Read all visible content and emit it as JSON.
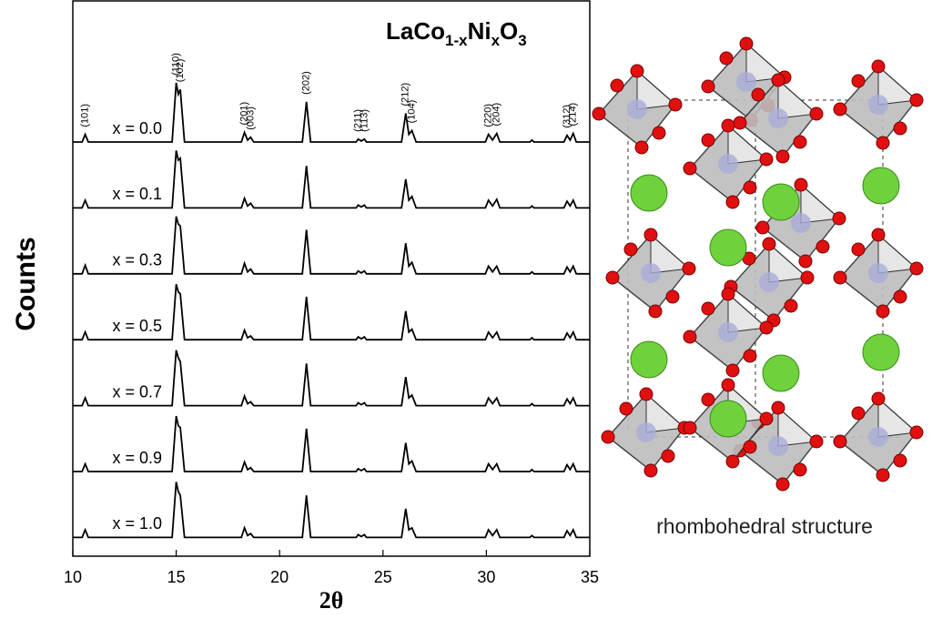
{
  "chart_data": {
    "type": "line",
    "title": [
      "LaCo",
      "1-x",
      "Ni",
      "x",
      "O",
      "3"
    ],
    "xlabel": "2θ",
    "ylabel": "Counts",
    "xlim": [
      10,
      35
    ],
    "xticks": [
      10,
      15,
      20,
      25,
      30,
      35
    ],
    "x": [
      10,
      10.45,
      10.6,
      10.75,
      14.8,
      15.0,
      15.1,
      15.2,
      15.4,
      18.15,
      18.3,
      18.45,
      18.6,
      18.75,
      21.1,
      21.3,
      21.5,
      23.7,
      23.8,
      23.95,
      24.1,
      24.2,
      25.9,
      26.1,
      26.25,
      26.4,
      26.6,
      29.95,
      30.1,
      30.3,
      30.5,
      30.65,
      32.1,
      32.2,
      32.3,
      33.75,
      33.9,
      34.05,
      34.2,
      34.35,
      35
    ],
    "series": [
      {
        "name": "x = 0.0",
        "color": "#000000",
        "values": [
          0,
          0,
          8,
          0,
          0,
          62,
          50,
          55,
          0,
          0,
          10,
          2,
          5,
          0,
          0,
          42,
          0,
          0,
          3,
          1,
          3,
          0,
          0,
          30,
          8,
          12,
          0,
          0,
          8,
          2,
          9,
          0,
          0,
          2,
          0,
          0,
          7,
          2,
          9,
          0,
          0
        ]
      },
      {
        "name": "x = 0.1",
        "color": "#000000",
        "values": [
          0,
          0,
          8,
          0,
          0,
          60,
          50,
          52,
          0,
          0,
          10,
          2,
          5,
          0,
          0,
          44,
          0,
          0,
          3,
          1,
          3,
          0,
          0,
          30,
          8,
          12,
          0,
          0,
          8,
          2,
          9,
          0,
          0,
          2,
          0,
          0,
          7,
          2,
          8,
          0,
          0
        ]
      },
      {
        "name": "x = 0.3",
        "color": "#000000",
        "values": [
          0,
          0,
          9,
          0,
          0,
          60,
          52,
          50,
          0,
          0,
          11,
          2,
          5,
          0,
          0,
          46,
          0,
          0,
          3,
          1,
          3,
          0,
          0,
          32,
          8,
          12,
          0,
          0,
          8,
          2,
          8,
          0,
          0,
          2,
          0,
          0,
          7,
          2,
          8,
          0,
          0
        ]
      },
      {
        "name": "x = 0.5",
        "color": "#000000",
        "values": [
          0,
          0,
          8,
          0,
          0,
          58,
          50,
          48,
          0,
          0,
          10,
          2,
          4,
          0,
          0,
          45,
          0,
          0,
          3,
          1,
          3,
          0,
          0,
          30,
          8,
          11,
          0,
          0,
          8,
          2,
          8,
          0,
          0,
          2,
          0,
          0,
          7,
          2,
          8,
          0,
          0
        ]
      },
      {
        "name": "x = 0.7",
        "color": "#000000",
        "values": [
          0,
          0,
          8,
          0,
          0,
          58,
          50,
          46,
          0,
          0,
          10,
          2,
          4,
          0,
          0,
          44,
          0,
          0,
          3,
          1,
          3,
          0,
          0,
          30,
          8,
          11,
          0,
          0,
          8,
          2,
          8,
          0,
          0,
          2,
          0,
          0,
          7,
          2,
          8,
          0,
          0
        ]
      },
      {
        "name": "x = 0.9",
        "color": "#000000",
        "values": [
          0,
          0,
          8,
          0,
          0,
          58,
          48,
          46,
          0,
          0,
          10,
          2,
          4,
          0,
          0,
          45,
          0,
          0,
          3,
          1,
          3,
          0,
          0,
          30,
          8,
          11,
          0,
          0,
          8,
          2,
          8,
          0,
          0,
          2,
          0,
          0,
          7,
          2,
          8,
          0,
          0
        ]
      },
      {
        "name": "x = 1.0",
        "color": "#000000",
        "values": [
          0,
          0,
          8,
          0,
          0,
          58,
          48,
          44,
          0,
          0,
          10,
          2,
          4,
          0,
          0,
          44,
          0,
          0,
          3,
          1,
          3,
          0,
          0,
          30,
          8,
          10,
          0,
          0,
          8,
          2,
          8,
          0,
          0,
          2,
          0,
          0,
          7,
          2,
          8,
          0,
          0
        ]
      }
    ],
    "annotations": [
      {
        "text": "(101)",
        "x": 10.6
      },
      {
        "text": "(110)",
        "x": 15.0
      },
      {
        "text": "(102)",
        "x": 15.2
      },
      {
        "text": "(201)",
        "x": 18.3
      },
      {
        "text": "(003)",
        "x": 18.6
      },
      {
        "text": "(202)",
        "x": 21.3
      },
      {
        "text": "(211)",
        "x": 23.8
      },
      {
        "text": "(113)",
        "x": 24.1
      },
      {
        "text": "(212)",
        "x": 26.1
      },
      {
        "text": "(104)",
        "x": 26.4
      },
      {
        "text": "(220)",
        "x": 30.1
      },
      {
        "text": "(204)",
        "x": 30.5
      },
      {
        "text": "(312)",
        "x": 33.9
      },
      {
        "text": "(214)",
        "x": 34.2
      }
    ]
  },
  "figure_caption": "rhombohedral structure"
}
